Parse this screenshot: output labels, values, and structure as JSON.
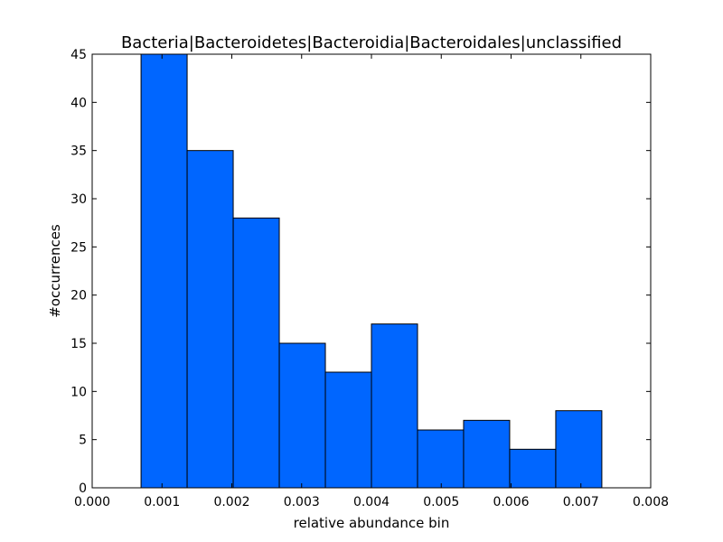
{
  "chart_data": {
    "type": "bar",
    "title": "Bacteria|Bacteroidetes|Bacteroidia|Bacteroidales|unclassified",
    "xlabel": "relative abundance bin",
    "ylabel": "#occurrences",
    "xlim": [
      0.0,
      0.008
    ],
    "ylim": [
      0,
      45
    ],
    "bar_color": "#0066ff",
    "edge_color": "#000000",
    "bins": [
      {
        "x0": 0.0007,
        "x1": 0.00136,
        "count": 45
      },
      {
        "x0": 0.00136,
        "x1": 0.00202,
        "count": 35
      },
      {
        "x0": 0.00202,
        "x1": 0.00268,
        "count": 28
      },
      {
        "x0": 0.00268,
        "x1": 0.00334,
        "count": 15
      },
      {
        "x0": 0.00334,
        "x1": 0.004,
        "count": 12
      },
      {
        "x0": 0.004,
        "x1": 0.00466,
        "count": 17
      },
      {
        "x0": 0.00466,
        "x1": 0.00532,
        "count": 6
      },
      {
        "x0": 0.00532,
        "x1": 0.00598,
        "count": 7
      },
      {
        "x0": 0.00598,
        "x1": 0.00664,
        "count": 4
      },
      {
        "x0": 0.00664,
        "x1": 0.0073,
        "count": 8
      }
    ],
    "xticks": [
      "0.000",
      "0.001",
      "0.002",
      "0.003",
      "0.004",
      "0.005",
      "0.006",
      "0.007",
      "0.008"
    ],
    "yticks": [
      "0",
      "5",
      "10",
      "15",
      "20",
      "25",
      "30",
      "35",
      "40",
      "45"
    ],
    "grid": false,
    "legend": "none"
  }
}
